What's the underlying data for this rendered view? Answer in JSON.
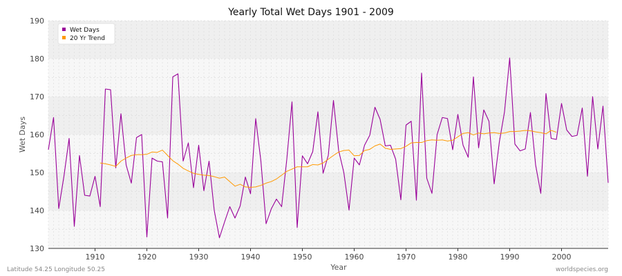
{
  "chart_data": {
    "type": "line",
    "title": "Yearly Total Wet Days 1901 - 2009",
    "xlabel": "Year",
    "ylabel": "Wet Days",
    "xlim": [
      1901,
      2009
    ],
    "ylim": [
      130,
      190
    ],
    "x_ticks": [
      1910,
      1920,
      1930,
      1940,
      1950,
      1960,
      1970,
      1980,
      1990,
      2000
    ],
    "y_ticks": [
      130,
      140,
      150,
      160,
      170,
      180,
      190
    ],
    "grid": true,
    "legend_position": "top-left",
    "series": [
      {
        "name": "Wet Days",
        "color": "#990099",
        "x": [
          1901,
          1902,
          1903,
          1904,
          1905,
          1906,
          1907,
          1908,
          1909,
          1910,
          1911,
          1912,
          1913,
          1914,
          1915,
          1916,
          1917,
          1918,
          1919,
          1920,
          1921,
          1922,
          1923,
          1924,
          1925,
          1926,
          1927,
          1928,
          1929,
          1930,
          1931,
          1932,
          1933,
          1934,
          1935,
          1936,
          1937,
          1938,
          1939,
          1940,
          1941,
          1942,
          1943,
          1944,
          1945,
          1946,
          1947,
          1948,
          1949,
          1950,
          1951,
          1952,
          1953,
          1954,
          1955,
          1956,
          1957,
          1958,
          1959,
          1960,
          1961,
          1962,
          1963,
          1964,
          1965,
          1966,
          1967,
          1968,
          1969,
          1970,
          1971,
          1972,
          1973,
          1974,
          1975,
          1976,
          1977,
          1978,
          1979,
          1980,
          1981,
          1982,
          1983,
          1984,
          1985,
          1986,
          1987,
          1988,
          1989,
          1990,
          1991,
          1992,
          1993,
          1994,
          1995,
          1996,
          1997,
          1998,
          1999,
          2000,
          2001,
          2002,
          2003,
          2004,
          2005,
          2006,
          2007,
          2008,
          2009
        ],
        "values": [
          156,
          164.5,
          140.5,
          149,
          159,
          135.8,
          154.5,
          144,
          143.8,
          149,
          141,
          172,
          171.8,
          151.2,
          165.5,
          152,
          147.2,
          159.2,
          160,
          133,
          153.8,
          153,
          152.8,
          138,
          175.2,
          176,
          153,
          157.8,
          146,
          157.2,
          145.2,
          153,
          140,
          132.8,
          137,
          141,
          138,
          141.2,
          148.8,
          144.4,
          164.2,
          153,
          136.5,
          140.4,
          143,
          141,
          153.5,
          168.6,
          135.5,
          154.4,
          152.3,
          155.5,
          166,
          149.8,
          154.5,
          169,
          155.8,
          150,
          140.1,
          153.8,
          152,
          157.2,
          159.8,
          167.2,
          164,
          157,
          157.2,
          153.5,
          142.8,
          162.5,
          163.5,
          142.7,
          176.2,
          148.5,
          144.5,
          160,
          164.5,
          164.2,
          156,
          165.3,
          157.2,
          154,
          175.2,
          156.5,
          166.5,
          163.5,
          147,
          158,
          166,
          180.2,
          157.5,
          155.7,
          156.2,
          165.8,
          152,
          144.5,
          170.8,
          159,
          158.7,
          168.2,
          161.2,
          159.5,
          159.8,
          167,
          149,
          170,
          156.2,
          167.5,
          147.3
        ]
      },
      {
        "name": "20 Yr Trend",
        "color": "#ff9900",
        "x": [
          1911,
          1912,
          1913,
          1914,
          1915,
          1916,
          1917,
          1918,
          1919,
          1920,
          1921,
          1922,
          1923,
          1924,
          1925,
          1926,
          1927,
          1928,
          1929,
          1930,
          1931,
          1932,
          1933,
          1934,
          1935,
          1936,
          1937,
          1938,
          1939,
          1940,
          1941,
          1942,
          1943,
          1944,
          1945,
          1946,
          1947,
          1948,
          1949,
          1950,
          1951,
          1952,
          1953,
          1954,
          1955,
          1956,
          1957,
          1958,
          1959,
          1960,
          1961,
          1962,
          1963,
          1964,
          1965,
          1966,
          1967,
          1968,
          1969,
          1970,
          1971,
          1972,
          1973,
          1974,
          1975,
          1976,
          1977,
          1978,
          1979,
          1980,
          1981,
          1982,
          1983,
          1984,
          1985,
          1986,
          1987,
          1988,
          1989,
          1990,
          1991,
          1992,
          1993,
          1994,
          1995,
          1996,
          1997,
          1998,
          1999
        ],
        "values": [
          152.5,
          152.3,
          152,
          151.6,
          153,
          153.8,
          154.5,
          154.7,
          154.7,
          154.8,
          155.4,
          155.3,
          155.9,
          154.5,
          153.1,
          152.2,
          151.1,
          150.4,
          149.8,
          149.5,
          149.3,
          149.2,
          148.9,
          148.5,
          148.8,
          147.6,
          146.4,
          146.9,
          146.2,
          146.1,
          146.2,
          146.6,
          147.2,
          147.6,
          148.3,
          149.3,
          150.3,
          150.9,
          151.5,
          151.5,
          151.5,
          152.1,
          152,
          152.5,
          153.5,
          154.5,
          155.4,
          155.8,
          155.9,
          154.4,
          154.5,
          155.8,
          156.1,
          157,
          157.5,
          156.4,
          156.1,
          156.2,
          156.3,
          156.9,
          157.8,
          157.9,
          157.9,
          158.4,
          158.6,
          158.5,
          158.6,
          158.3,
          158.5,
          159.4,
          160.3,
          160.5,
          159.9,
          160.4,
          160.2,
          160.4,
          160.5,
          160.3,
          160.4,
          160.8,
          160.8,
          160.9,
          161.1,
          161,
          160.7,
          160.5,
          160.2,
          161.1,
          160.6
        ]
      }
    ]
  },
  "footer": {
    "left": "Latitude 54.25 Longitude 50.25",
    "right": "worldspecies.org"
  },
  "colors": {
    "plot_band_light": "#f7f7f7",
    "plot_band_dark": "#efefef",
    "grid": "#dddddd",
    "axis": "#333333"
  }
}
